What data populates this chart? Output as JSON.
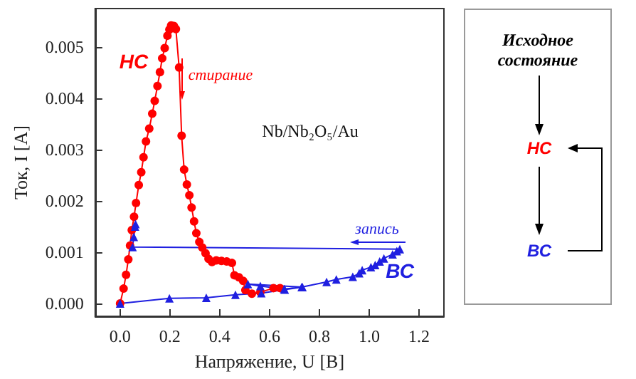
{
  "chart_data": [
    {
      "type": "line",
      "xlabel": "Напряжение, U [В]",
      "ylabel": "Ток, I [A]",
      "xlim": [
        -0.1,
        1.3
      ],
      "ylim": [
        -0.00025,
        0.00575
      ],
      "xticks": [
        {
          "value": 0,
          "label": "0.0"
        },
        {
          "value": 0.2,
          "label": "0.2"
        },
        {
          "value": 0.4,
          "label": "0.4"
        },
        {
          "value": 0.6,
          "label": "0.6"
        },
        {
          "value": 0.8,
          "label": "0.8"
        },
        {
          "value": 1,
          "label": "1.0"
        },
        {
          "value": 1.2,
          "label": "1.2"
        }
      ],
      "yticks": [
        {
          "value": 0,
          "label": "0.000"
        },
        {
          "value": 0.001,
          "label": "0.001"
        },
        {
          "value": 0.002,
          "label": "0.002"
        },
        {
          "value": 0.003,
          "label": "0.003"
        },
        {
          "value": 0.004,
          "label": "0.004"
        },
        {
          "value": 0.005,
          "label": "0.005"
        }
      ],
      "grid": false,
      "series": [
        {
          "color": "#ff0000",
          "marker": "circle",
          "x": [
            0,
            0.014,
            0.024,
            0.033,
            0.04,
            0.047,
            0.056,
            0.064,
            0.075,
            0.085,
            0.094,
            0.104,
            0.117,
            0.129,
            0.139,
            0.15,
            0.16,
            0.169,
            0.179,
            0.19,
            0.198,
            0.205,
            0.216,
            0.224,
            0.237,
            0.247,
            0.257,
            0.268,
            0.278,
            0.287,
            0.297,
            0.306,
            0.318,
            0.33,
            0.343,
            0.355,
            0.369,
            0.386,
            0.407,
            0.428,
            0.449,
            0.459,
            0.477,
            0.494,
            0.503,
            0.529,
            0.563,
            0.616,
            0.642
          ],
          "values": [
            0,
            0.00029,
            0.00056,
            0.00086,
            0.00113,
            0.00143,
            0.00169,
            0.00196,
            0.00231,
            0.00256,
            0.00285,
            0.00316,
            0.00341,
            0.0037,
            0.00395,
            0.00424,
            0.00451,
            0.00478,
            0.00498,
            0.00522,
            0.00534,
            0.00542,
            0.00541,
            0.00535,
            0.0046,
            0.00327,
            0.00261,
            0.00232,
            0.00211,
            0.00187,
            0.0016,
            0.00137,
            0.0012,
            0.00109,
            0.00098,
            0.00087,
            0.00081,
            0.00084,
            0.00083,
            0.00082,
            0.00079,
            0.00055,
            0.00051,
            0.00044,
            0.00026,
            0.00019,
            0.00022,
            0.0003,
            0.0003
          ]
        },
        {
          "color": "#1f1fe0",
          "marker": "triangle",
          "x": [
            0,
            0.198,
            0.346,
            0.463,
            0.567,
            0.661,
            0.732,
            0.513,
            0.563,
            0.659,
            0.729,
            0.829,
            0.868,
            0.934,
            0.96,
            0.972,
            1.007,
            1.024,
            1.042,
            1.059,
            1.094,
            1.111,
            1.123,
            0.05,
            0.055,
            0.06,
            0.062
          ],
          "values": [
            0,
            0.0001,
            0.00011,
            0.00017,
            0.0002,
            0.00027,
            0.00032,
            0.00038,
            0.00034,
            0.00028,
            0.00032,
            0.00042,
            0.00047,
            0.00052,
            0.00059,
            0.00065,
            0.00071,
            0.00075,
            0.00082,
            0.00088,
            0.00096,
            0.00102,
            0.00106,
            0.0011,
            0.0013,
            0.0015,
            0.00155
          ]
        }
      ],
      "annotations": [
        "НС",
        "стирание",
        "Nb/Nb₂O₅/Au",
        "запись",
        "ВС"
      ]
    },
    {
      "type": "other",
      "annotations": [
        "Исходное состояние",
        "НС",
        "ВС"
      ]
    }
  ]
}
